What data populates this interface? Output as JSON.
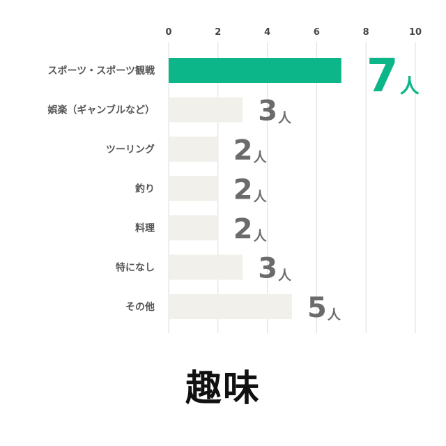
{
  "chart_data": {
    "type": "bar",
    "orientation": "horizontal",
    "title": "趣味",
    "categories": [
      "スポーツ・スポーツ観戦",
      "娯楽（ギャンブルなど）",
      "ツーリング",
      "釣り",
      "料理",
      "特になし",
      "その他"
    ],
    "values": [
      7,
      3,
      2,
      2,
      2,
      3,
      5
    ],
    "unit": "人",
    "xlim": [
      0,
      10
    ],
    "xticks": [
      0,
      2,
      4,
      6,
      8,
      10
    ],
    "axis_position": "top",
    "grid": true,
    "highlight_index": 0,
    "colors": {
      "highlight_bar": "#0db688",
      "bar": "#f2f0eb",
      "grid": "#dddddd",
      "value_text": "#6b6b6b",
      "highlight_text": "#0db688"
    }
  }
}
